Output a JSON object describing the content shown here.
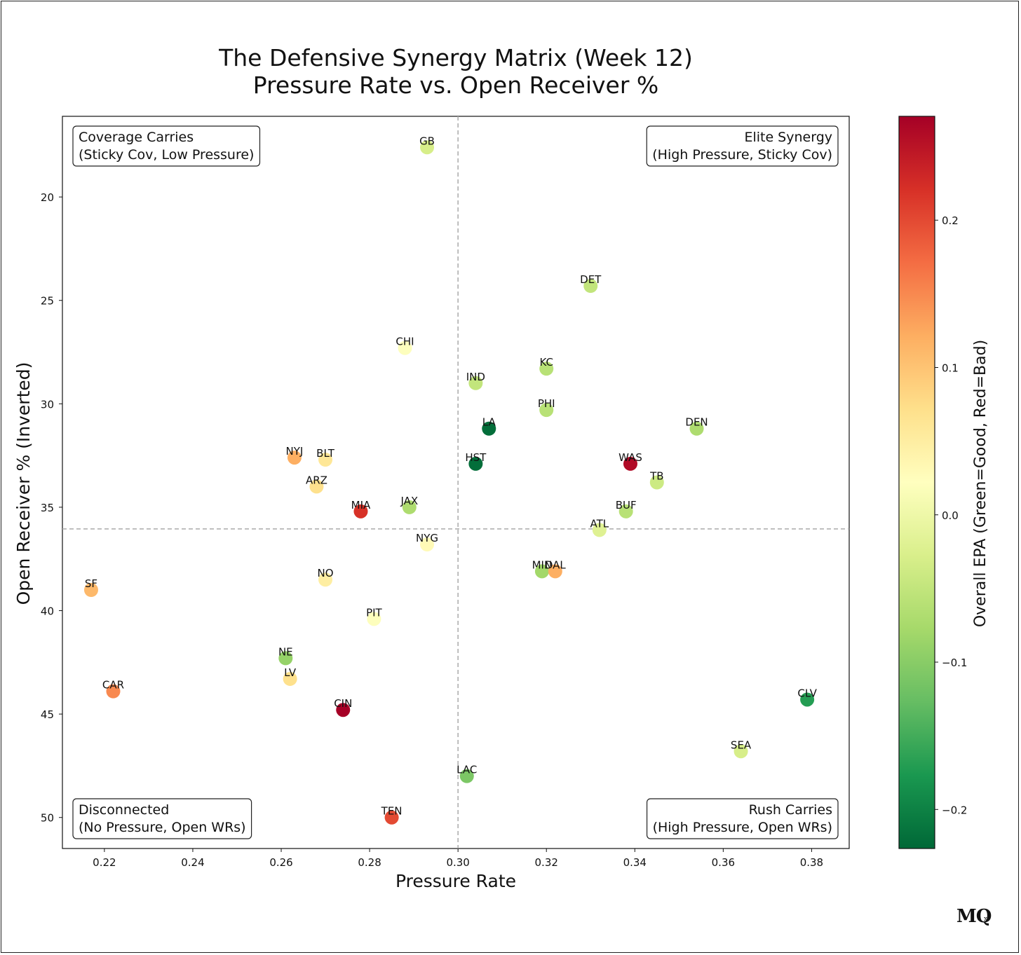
{
  "branding": {
    "logo_text": "MQ",
    "logo_mark": "x"
  },
  "chart_data": {
    "type": "scatter",
    "title": [
      "The Defensive Synergy Matrix (Week 12)",
      "Pressure Rate vs. Open Receiver %"
    ],
    "xlabel": "Pressure Rate",
    "ylabel": "Open Receiver % (Inverted)",
    "colorbar_label": "Overall EPA (Green=Good, Red=Bad)",
    "xlim": [
      0.2105,
      0.3885
    ],
    "ylim": [
      51.5,
      16.1
    ],
    "y_inverted": true,
    "x_ticks": [
      0.22,
      0.24,
      0.26,
      0.28,
      0.3,
      0.32,
      0.34,
      0.36,
      0.38
    ],
    "x_tick_labels": [
      "0.22",
      "0.24",
      "0.26",
      "0.28",
      "0.30",
      "0.32",
      "0.34",
      "0.36",
      "0.38"
    ],
    "y_ticks": [
      20,
      25,
      30,
      35,
      40,
      45,
      50
    ],
    "y_tick_labels": [
      "20",
      "25",
      "30",
      "35",
      "40",
      "45",
      "50"
    ],
    "reference_lines": {
      "x": 0.3,
      "y": 36.05
    },
    "colorbar_range": [
      -0.2265,
      0.2705
    ],
    "colorbar_ticks": [
      -0.2,
      -0.1,
      0.0,
      0.1,
      0.2
    ],
    "colorbar_tick_labels": [
      "−0.2",
      "−0.1",
      "0.0",
      "0.1",
      "0.2"
    ],
    "colormap": [
      "#006837",
      "#1a9850",
      "#66bd63",
      "#a6d96a",
      "#d9ef8b",
      "#ffffbf",
      "#fee08b",
      "#fdae61",
      "#f46d43",
      "#d73027",
      "#a50026"
    ],
    "quadrants": [
      {
        "position": "top-left",
        "lines": [
          "Coverage Carries",
          "(Sticky Cov, Low Pressure)"
        ]
      },
      {
        "position": "top-right",
        "lines": [
          "Elite Synergy",
          "(High Pressure, Sticky Cov)"
        ]
      },
      {
        "position": "bottom-left",
        "lines": [
          "Disconnected",
          "(No Pressure, Open WRs)"
        ]
      },
      {
        "position": "bottom-right",
        "lines": [
          "Rush Carries",
          "(High Pressure, Open WRs)"
        ]
      }
    ],
    "points": [
      {
        "team": "GB",
        "x": 0.293,
        "y": 17.6,
        "epa": -0.03
      },
      {
        "team": "DET",
        "x": 0.33,
        "y": 24.3,
        "epa": -0.05
      },
      {
        "team": "CHI",
        "x": 0.288,
        "y": 27.3,
        "epa": 0.02
      },
      {
        "team": "KC",
        "x": 0.32,
        "y": 28.3,
        "epa": -0.06
      },
      {
        "team": "IND",
        "x": 0.304,
        "y": 29.0,
        "epa": -0.05
      },
      {
        "team": "PHI",
        "x": 0.32,
        "y": 30.3,
        "epa": -0.06
      },
      {
        "team": "LA",
        "x": 0.307,
        "y": 31.2,
        "epa": -0.22
      },
      {
        "team": "DEN",
        "x": 0.354,
        "y": 31.2,
        "epa": -0.07
      },
      {
        "team": "NYJ",
        "x": 0.263,
        "y": 32.6,
        "epa": 0.12
      },
      {
        "team": "BLT",
        "x": 0.27,
        "y": 32.7,
        "epa": 0.06
      },
      {
        "team": "HST",
        "x": 0.304,
        "y": 32.9,
        "epa": -0.22
      },
      {
        "team": "WAS",
        "x": 0.339,
        "y": 32.9,
        "epa": 0.26
      },
      {
        "team": "ARZ",
        "x": 0.268,
        "y": 34.0,
        "epa": 0.07
      },
      {
        "team": "TB",
        "x": 0.345,
        "y": 33.8,
        "epa": -0.04
      },
      {
        "team": "JAX",
        "x": 0.289,
        "y": 35.0,
        "epa": -0.07
      },
      {
        "team": "MIA",
        "x": 0.278,
        "y": 35.2,
        "epa": 0.22
      },
      {
        "team": "BUF",
        "x": 0.338,
        "y": 35.2,
        "epa": -0.06
      },
      {
        "team": "ATL",
        "x": 0.332,
        "y": 36.1,
        "epa": -0.02
      },
      {
        "team": "NYG",
        "x": 0.293,
        "y": 36.8,
        "epa": 0.03
      },
      {
        "team": "MIN",
        "x": 0.319,
        "y": 38.1,
        "epa": -0.08
      },
      {
        "team": "DAL",
        "x": 0.322,
        "y": 38.1,
        "epa": 0.12
      },
      {
        "team": "NO",
        "x": 0.27,
        "y": 38.5,
        "epa": 0.05
      },
      {
        "team": "SF",
        "x": 0.217,
        "y": 39.0,
        "epa": 0.11
      },
      {
        "team": "PIT",
        "x": 0.281,
        "y": 40.4,
        "epa": 0.02
      },
      {
        "team": "NE",
        "x": 0.261,
        "y": 42.3,
        "epa": -0.09
      },
      {
        "team": "LV",
        "x": 0.262,
        "y": 43.3,
        "epa": 0.07
      },
      {
        "team": "CAR",
        "x": 0.222,
        "y": 43.9,
        "epa": 0.15
      },
      {
        "team": "CLV",
        "x": 0.379,
        "y": 44.3,
        "epa": -0.17
      },
      {
        "team": "CIN",
        "x": 0.274,
        "y": 44.8,
        "epa": 0.27
      },
      {
        "team": "SEA",
        "x": 0.364,
        "y": 46.8,
        "epa": -0.03
      },
      {
        "team": "LAC",
        "x": 0.302,
        "y": 48.0,
        "epa": -0.11
      },
      {
        "team": "TEN",
        "x": 0.285,
        "y": 50.0,
        "epa": 0.2
      }
    ]
  }
}
